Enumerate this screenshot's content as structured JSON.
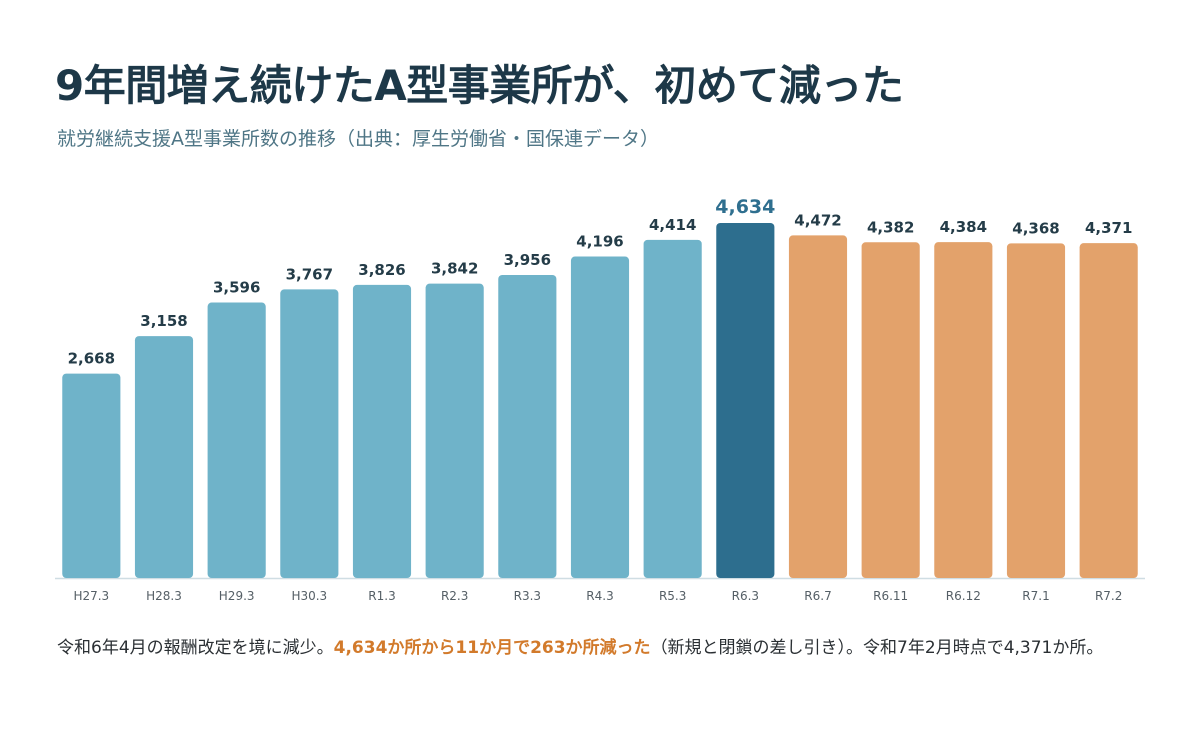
{
  "title": "9年間増え続けたA型事業所が、初めて減った",
  "subtitle": "就労継続支援A型事業所数の推移（出典：厚生労働省・国保連データ）",
  "footnote": {
    "part1": "令和6年4月の報酬改定を境に減少。",
    "highlight": "4,634か所から11か月で263か所減った",
    "part2": "（新規と閉鎖の差し引き）。令和7年2月時点で4,371か所。"
  },
  "colors": {
    "increase": "#6fb3c9",
    "peak": "#2d6e8e",
    "decrease": "#e3a26b",
    "accent_text": "#d27a2b"
  },
  "chart_data": {
    "type": "bar",
    "categories": [
      "H27.3",
      "H28.3",
      "H29.3",
      "H30.3",
      "R1.3",
      "R2.3",
      "R3.3",
      "R4.3",
      "R5.3",
      "R6.3",
      "R6.7",
      "R6.11",
      "R6.12",
      "R7.1",
      "R7.2"
    ],
    "values": [
      2668,
      3158,
      3596,
      3767,
      3826,
      3842,
      3956,
      4196,
      4414,
      4634,
      4472,
      4382,
      4384,
      4368,
      4371
    ],
    "value_labels": [
      "2,668",
      "3,158",
      "3,596",
      "3,767",
      "3,826",
      "3,842",
      "3,956",
      "4,196",
      "4,414",
      "4,634",
      "4,472",
      "4,382",
      "4,384",
      "4,368",
      "4,371"
    ],
    "bar_groups": [
      "increase",
      "increase",
      "increase",
      "increase",
      "increase",
      "increase",
      "increase",
      "increase",
      "increase",
      "peak",
      "decrease",
      "decrease",
      "decrease",
      "decrease",
      "decrease"
    ],
    "highlight_index": 9,
    "ylim": [
      0,
      4634
    ],
    "xlabel": "",
    "ylabel": "",
    "grid": false,
    "legend": "none"
  }
}
